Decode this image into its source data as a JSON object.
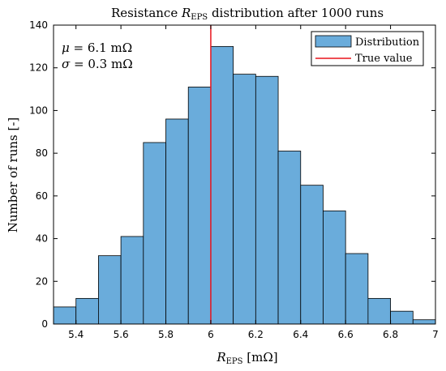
{
  "chart_data": {
    "type": "bar",
    "title": "Resistance R_EPS distribution after 1000 runs",
    "title_parts": {
      "prefix": "Resistance ",
      "symbol": "R",
      "subscript": "EPS",
      "suffix": " distribution after 1000 runs"
    },
    "xlabel": "R_EPS [mΩ]",
    "xlabel_parts": {
      "symbol": "R",
      "subscript": "EPS",
      "unit": " [mΩ]"
    },
    "ylabel": "Number of runs [-]",
    "xlim": [
      5.3,
      7.0
    ],
    "ylim": [
      0,
      140
    ],
    "xticks": [
      5.4,
      5.6,
      5.8,
      6,
      6.2,
      6.4,
      6.6,
      6.8,
      7
    ],
    "xtick_labels": [
      "5.4",
      "5.6",
      "5.8",
      "6",
      "6.2",
      "6.4",
      "6.6",
      "6.8",
      "7"
    ],
    "yticks": [
      0,
      20,
      40,
      60,
      80,
      100,
      120,
      140
    ],
    "ytick_labels": [
      "0",
      "20",
      "40",
      "60",
      "80",
      "100",
      "120",
      "140"
    ],
    "bin_edges": [
      5.3,
      5.4,
      5.5,
      5.6,
      5.7,
      5.8,
      5.9,
      6.0,
      6.1,
      6.2,
      6.3,
      6.4,
      6.5,
      6.6,
      6.7,
      6.8,
      6.9,
      7.0
    ],
    "values": [
      8,
      12,
      32,
      41,
      85,
      96,
      111,
      130,
      117,
      116,
      81,
      65,
      53,
      33,
      12,
      6,
      2
    ],
    "bar_color": "#6aacdb",
    "true_value": 6.0,
    "true_value_color": "#e8141c",
    "annotations": [
      {
        "symbol": "μ",
        "text": " = 6.1 mΩ"
      },
      {
        "symbol": "σ",
        "text": " = 0.3 mΩ"
      }
    ],
    "legend": {
      "placement": "top-right",
      "entries": [
        {
          "label": "Distribution",
          "kind": "patch"
        },
        {
          "label": "True value",
          "kind": "line"
        }
      ]
    },
    "grid": false
  }
}
